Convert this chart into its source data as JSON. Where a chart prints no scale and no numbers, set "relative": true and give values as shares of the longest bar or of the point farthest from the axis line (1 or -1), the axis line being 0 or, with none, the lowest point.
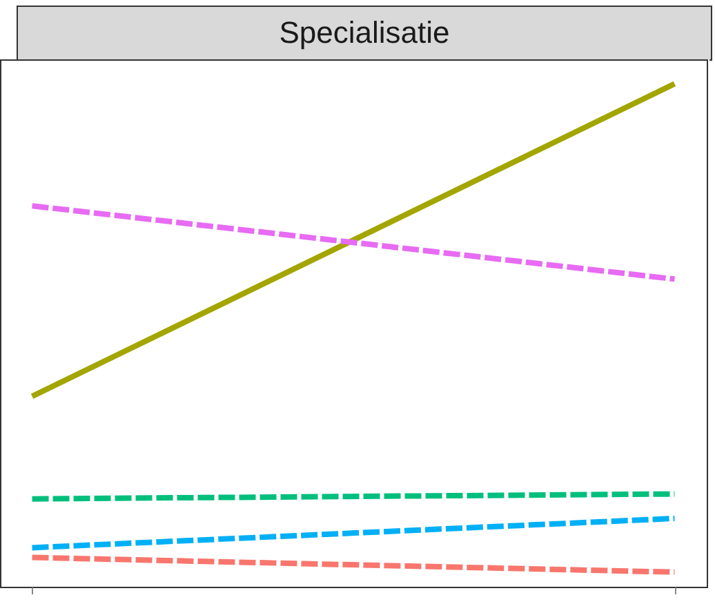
{
  "chart_data": {
    "type": "line",
    "title": "Specialisatie",
    "relative": true,
    "categories": [
      null,
      null
    ],
    "series": [
      {
        "color": "#a3a500",
        "line_style": "solid",
        "values": [
          0.36,
          1
        ]
      },
      {
        "color": "#e76bf3",
        "line_style": "dashed",
        "values": [
          0.75,
          0.6
        ]
      },
      {
        "color": "#00bf7d",
        "line_style": "dashed",
        "values": [
          0.15,
          0.16
        ]
      },
      {
        "color": "#00b0f6",
        "line_style": "dashed",
        "values": [
          0.05,
          0.11
        ]
      },
      {
        "color": "#f8766d",
        "line_style": "dashed",
        "values": [
          0.03,
          0
        ]
      }
    ]
  }
}
